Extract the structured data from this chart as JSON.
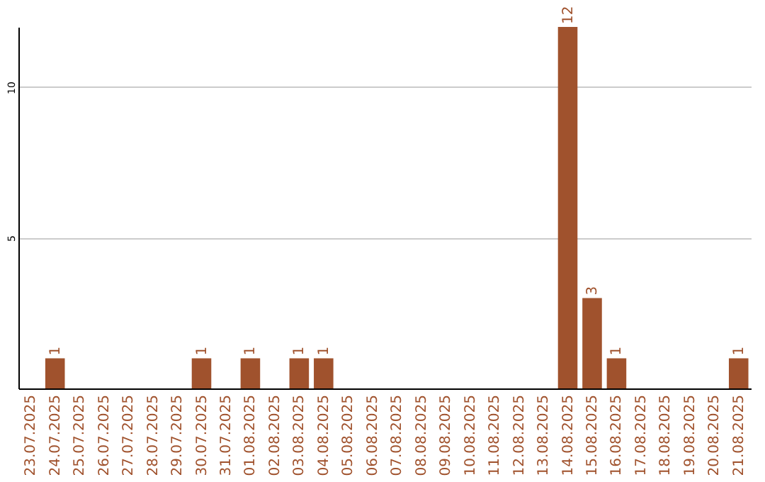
{
  "chart_data": {
    "type": "bar",
    "categories": [
      "23.07.2025",
      "24.07.2025",
      "25.07.2025",
      "26.07.2025",
      "27.07.2025",
      "28.07.2025",
      "29.07.2025",
      "30.07.2025",
      "31.07.2025",
      "01.08.2025",
      "02.08.2025",
      "03.08.2025",
      "04.08.2025",
      "05.08.2025",
      "06.08.2025",
      "07.08.2025",
      "08.08.2025",
      "09.08.2025",
      "10.08.2025",
      "11.08.2025",
      "12.08.2025",
      "13.08.2025",
      "14.08.2025",
      "15.08.2025",
      "16.08.2025",
      "17.08.2025",
      "18.08.2025",
      "19.08.2025",
      "20.08.2025",
      "21.08.2025"
    ],
    "values": [
      0,
      1,
      0,
      0,
      0,
      0,
      0,
      1,
      0,
      1,
      0,
      1,
      1,
      0,
      0,
      0,
      0,
      0,
      0,
      0,
      0,
      0,
      12,
      3,
      1,
      0,
      0,
      0,
      0,
      1
    ],
    "value_labels": [
      null,
      "1",
      null,
      null,
      null,
      null,
      null,
      "1",
      null,
      "1",
      null,
      "1",
      "1",
      null,
      null,
      null,
      null,
      null,
      null,
      null,
      null,
      null,
      "12",
      "3",
      "1",
      null,
      null,
      null,
      null,
      "1"
    ],
    "color": "#a0522d",
    "ylim": [
      0,
      12
    ],
    "yticks": [
      5,
      10
    ],
    "grid": "y"
  }
}
